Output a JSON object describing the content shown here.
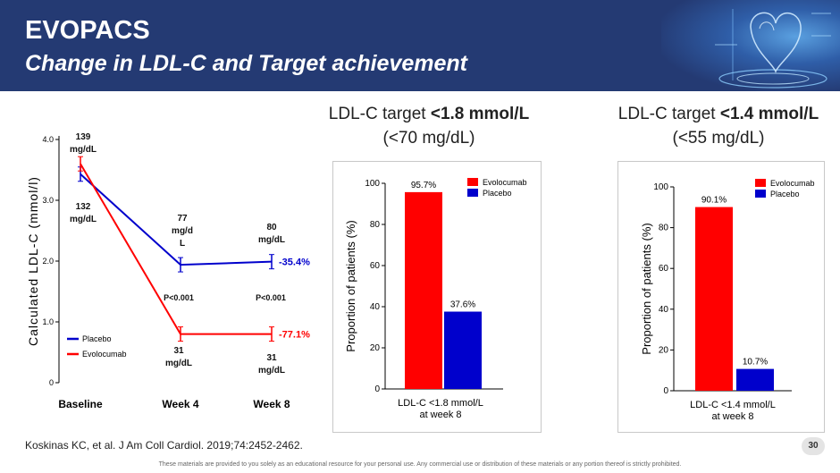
{
  "header": {
    "title": "EVOPACS",
    "subtitle": "Change in LDL-C and Target achievement"
  },
  "colors": {
    "evolocumab": "#ff0000",
    "placebo": "#0000cc",
    "header_bg": "#243a73"
  },
  "footer": {
    "reference": "Koskinas KC, et al. J Am Coll Cardiol. 2019;74:2452-2462.",
    "page_number": "30",
    "disclaimer": "These materials are provided to you solely as an educational resource for your personal use. Any commercial use or distribution of these materials or any portion thereof is strictly prohibited."
  },
  "panels": {
    "target18": {
      "title_prefix": "LDL-C target ",
      "title_bold": "<1.8 mmol/L",
      "title_line2": "(<70 mg/dL)"
    },
    "target14": {
      "title_prefix": "LDL-C target ",
      "title_bold": "<1.4 mmol/L",
      "title_line2": "(<55 mg/dL)"
    }
  },
  "chart_data": [
    {
      "type": "line",
      "ylabel": "Calculated LDL-C (mmol/l)",
      "categories": [
        "Baseline",
        "Week 4",
        "Week 8"
      ],
      "yticks": [
        "0",
        "1.0",
        "2.0",
        "3.0",
        "4.0"
      ],
      "ylim": [
        0,
        4.0
      ],
      "series": [
        {
          "name": "Placebo",
          "color": "#0000cc",
          "values": [
            3.43,
            1.94,
            1.99
          ],
          "end_label": "-35.4%"
        },
        {
          "name": "Evolocumab",
          "color": "#ff0000",
          "values": [
            3.6,
            0.8,
            0.8
          ],
          "end_label": "-77.1%"
        }
      ],
      "legend": [
        "Placebo",
        "Evolocumab"
      ],
      "legend_position": "bottom-left",
      "annotations": {
        "evo_baseline": [
          "139",
          "mg/dL"
        ],
        "pbo_baseline": [
          "132",
          "mg/dL"
        ],
        "pbo_week4": [
          "77",
          "mg/d",
          "L"
        ],
        "pbo_week8": [
          "80",
          "mg/dL"
        ],
        "evo_week4": [
          "31",
          "mg/dL"
        ],
        "evo_week8": [
          "31",
          "mg/dL"
        ],
        "p_week4": "P<0.001",
        "p_week8": "P<0.001"
      }
    },
    {
      "type": "bar",
      "ylabel": "Proportion of patients (%)",
      "categories": [
        "LDL-C <1.8 mmol/L",
        "at week 8"
      ],
      "ylim": [
        0,
        100
      ],
      "yticks": [
        "0",
        "20",
        "40",
        "60",
        "80",
        "100"
      ],
      "series": [
        {
          "name": "Evolocumab",
          "color": "#ff0000",
          "value": 95.7,
          "label": "95.7%"
        },
        {
          "name": "Placebo",
          "color": "#0000cc",
          "value": 37.6,
          "label": "37.6%"
        }
      ],
      "legend_position": "top-right"
    },
    {
      "type": "bar",
      "ylabel": "Proportion of patients (%)",
      "categories": [
        "LDL-C <1.4 mmol/L",
        "at week 8"
      ],
      "ylim": [
        0,
        100
      ],
      "yticks": [
        "0",
        "20",
        "40",
        "60",
        "80",
        "100"
      ],
      "series": [
        {
          "name": "Evolocumab",
          "color": "#ff0000",
          "value": 90.1,
          "label": "90.1%"
        },
        {
          "name": "Placebo",
          "color": "#0000cc",
          "value": 10.7,
          "label": "10.7%"
        }
      ],
      "legend_position": "top-right"
    }
  ]
}
